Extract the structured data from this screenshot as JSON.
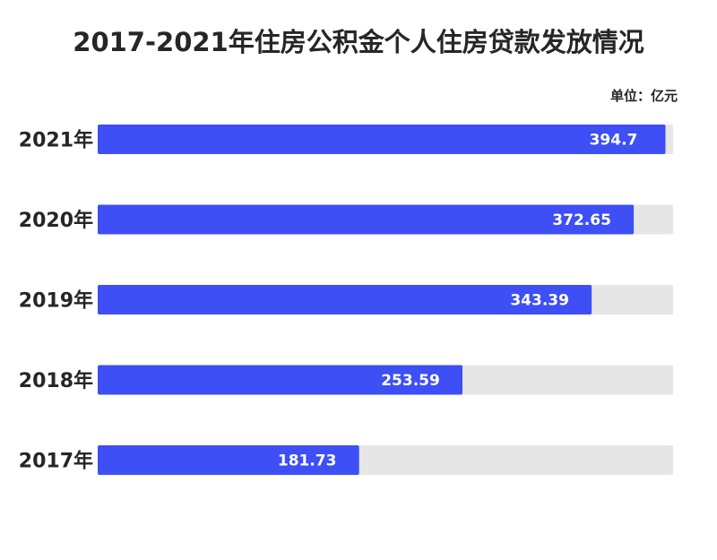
{
  "chart_data": {
    "type": "bar",
    "orientation": "horizontal",
    "title": "2017-2021年住房公积金个人住房贷款发放情况",
    "unit_label": "单位：亿元",
    "categories": [
      "2021年",
      "2020年",
      "2019年",
      "2018年",
      "2017年"
    ],
    "values": [
      394.7,
      372.65,
      343.39,
      253.59,
      181.73
    ],
    "value_labels": [
      "394.7",
      "372.65",
      "343.39",
      "253.59",
      "181.73"
    ],
    "xlim": [
      0,
      400
    ],
    "grid": false,
    "legend": "none",
    "colors": {
      "bar": "#3d4ff5",
      "track": "#e6e6e6",
      "text": "#262626",
      "value_text": "#ffffff"
    }
  }
}
